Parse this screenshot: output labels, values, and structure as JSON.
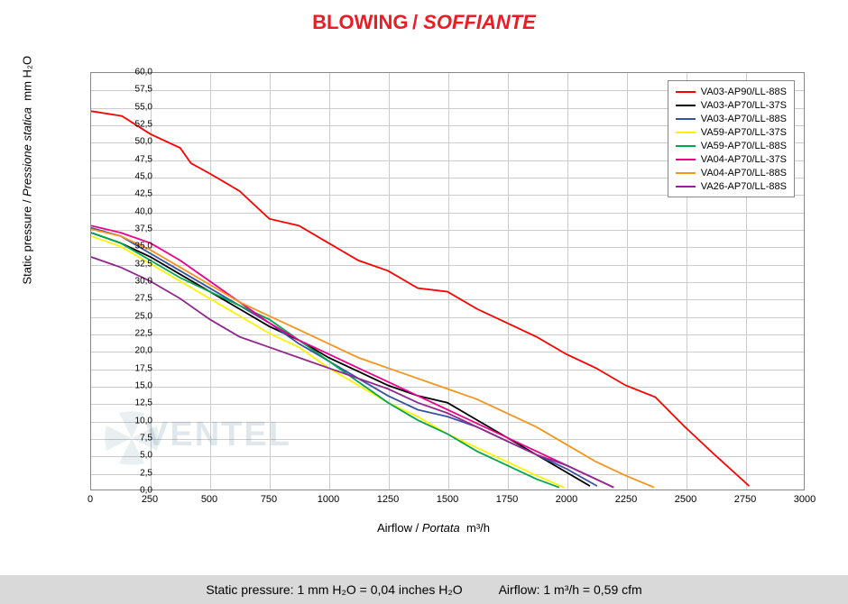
{
  "title_main": "BLOWING",
  "title_sub": "SOFFIANTE",
  "title_color": "#ed1c24",
  "ylabel_en": "Static pressure",
  "ylabel_it": "Pressione statica",
  "ylabel_unit": "mm  H₂O",
  "xlabel_en": "Airflow",
  "xlabel_it": "Portata",
  "xlabel_unit": "m³/h",
  "footer_left": "Static pressure: 1 mm H₂O = 0,04 inches H₂O",
  "footer_right": "Airflow: 1 m³/h = 0,59 cfm",
  "xlim": [
    0,
    3000
  ],
  "ylim": [
    0,
    60
  ],
  "xtick_step": 250,
  "ytick_step": 2.5,
  "xticks": [
    "0",
    "250",
    "500",
    "750",
    "1000",
    "1250",
    "1500",
    "1750",
    "2000",
    "2250",
    "2500",
    "2750",
    "3000"
  ],
  "yticks": [
    "0,0",
    "2,5",
    "5,0",
    "7,5",
    "10,0",
    "12,5",
    "15,0",
    "17,5",
    "20,0",
    "22,5",
    "25,0",
    "27,5",
    "30,0",
    "32,5",
    "35,0",
    "37,5",
    "40,0",
    "42,5",
    "45,0",
    "47,5",
    "50,0",
    "52,5",
    "55,0",
    "57,5",
    "60,0"
  ],
  "line_width": 1.8,
  "grid_color": "#cccccc",
  "border_color": "#888888",
  "background_color": "#ffffff",
  "footer_bg": "#d9d9d9",
  "tick_fontsize": 10,
  "label_fontsize": 13,
  "legend_fontsize": 11,
  "watermark_text": "VENTEL",
  "series": [
    {
      "label": "VA03-AP90/LL-88S",
      "color": "#ff0000",
      "data": [
        [
          0,
          54.5
        ],
        [
          130,
          53.8
        ],
        [
          250,
          51.2
        ],
        [
          375,
          49.2
        ],
        [
          420,
          47
        ],
        [
          500,
          45.5
        ],
        [
          625,
          43
        ],
        [
          750,
          39
        ],
        [
          875,
          38
        ],
        [
          1000,
          35.5
        ],
        [
          1125,
          33
        ],
        [
          1250,
          31.5
        ],
        [
          1375,
          29
        ],
        [
          1500,
          28.5
        ],
        [
          1625,
          26
        ],
        [
          1750,
          24
        ],
        [
          1875,
          22
        ],
        [
          2000,
          19.5
        ],
        [
          2125,
          17.5
        ],
        [
          2250,
          15
        ],
        [
          2375,
          13.3
        ],
        [
          2500,
          9
        ],
        [
          2625,
          5
        ],
        [
          2770,
          0.5
        ]
      ]
    },
    {
      "label": "VA03-AP70/LL-37S",
      "color": "#000000",
      "data": [
        [
          0,
          37
        ],
        [
          125,
          35.5
        ],
        [
          250,
          33.5
        ],
        [
          375,
          31
        ],
        [
          500,
          28.5
        ],
        [
          625,
          26
        ],
        [
          750,
          23.5
        ],
        [
          875,
          21.5
        ],
        [
          1000,
          19
        ],
        [
          1125,
          17
        ],
        [
          1250,
          15
        ],
        [
          1375,
          13.5
        ],
        [
          1500,
          12.5
        ],
        [
          1625,
          10
        ],
        [
          1750,
          7.5
        ],
        [
          1875,
          5
        ],
        [
          2000,
          2.5
        ],
        [
          2100,
          0.5
        ]
      ]
    },
    {
      "label": "VA03-AP70/LL-88S",
      "color": "#3953a4",
      "data": [
        [
          0,
          37.7
        ],
        [
          125,
          36.5
        ],
        [
          250,
          34
        ],
        [
          375,
          31.5
        ],
        [
          500,
          29
        ],
        [
          625,
          26.5
        ],
        [
          750,
          24
        ],
        [
          875,
          21
        ],
        [
          1000,
          18.5
        ],
        [
          1125,
          16
        ],
        [
          1250,
          13.5
        ],
        [
          1375,
          11.5
        ],
        [
          1500,
          10.5
        ],
        [
          1625,
          9
        ],
        [
          1750,
          7
        ],
        [
          1875,
          5
        ],
        [
          2000,
          3
        ],
        [
          2130,
          0.5
        ]
      ]
    },
    {
      "label": "VA59-AP70/LL-37S",
      "color": "#fff200",
      "data": [
        [
          0,
          36.5
        ],
        [
          125,
          35
        ],
        [
          250,
          32.5
        ],
        [
          375,
          30
        ],
        [
          500,
          27.5
        ],
        [
          625,
          25
        ],
        [
          750,
          22.5
        ],
        [
          875,
          20.5
        ],
        [
          1000,
          17.5
        ],
        [
          1125,
          15
        ],
        [
          1250,
          12.5
        ],
        [
          1375,
          10.5
        ],
        [
          1500,
          8
        ],
        [
          1625,
          6
        ],
        [
          1750,
          4
        ],
        [
          1875,
          2
        ],
        [
          1990,
          0.3
        ]
      ]
    },
    {
      "label": "VA59-AP70/LL-88S",
      "color": "#00a651",
      "data": [
        [
          0,
          37
        ],
        [
          125,
          35.5
        ],
        [
          250,
          33
        ],
        [
          375,
          30.5
        ],
        [
          500,
          28.5
        ],
        [
          625,
          26.5
        ],
        [
          750,
          24.5
        ],
        [
          875,
          21.5
        ],
        [
          1000,
          18.5
        ],
        [
          1125,
          15.5
        ],
        [
          1250,
          12.5
        ],
        [
          1375,
          10
        ],
        [
          1500,
          8
        ],
        [
          1625,
          5.5
        ],
        [
          1750,
          3.5
        ],
        [
          1875,
          1.5
        ],
        [
          1970,
          0.3
        ]
      ]
    },
    {
      "label": "VA04-AP70/LL-37S",
      "color": "#ec008c",
      "data": [
        [
          0,
          38
        ],
        [
          125,
          37
        ],
        [
          250,
          35.5
        ],
        [
          375,
          33
        ],
        [
          500,
          30
        ],
        [
          625,
          27
        ],
        [
          750,
          24
        ],
        [
          875,
          21.5
        ],
        [
          1000,
          19.5
        ],
        [
          1125,
          17.5
        ],
        [
          1250,
          15.5
        ],
        [
          1375,
          13.5
        ],
        [
          1500,
          11.5
        ],
        [
          1625,
          9.5
        ],
        [
          1750,
          7.5
        ],
        [
          1875,
          5.5
        ],
        [
          2000,
          3.5
        ],
        [
          2125,
          1.5
        ],
        [
          2200,
          0.3
        ]
      ]
    },
    {
      "label": "VA04-AP70/LL-88S",
      "color": "#f7941e",
      "data": [
        [
          0,
          37.5
        ],
        [
          125,
          36.5
        ],
        [
          250,
          34.5
        ],
        [
          375,
          32
        ],
        [
          500,
          29.5
        ],
        [
          625,
          27
        ],
        [
          750,
          25
        ],
        [
          875,
          23
        ],
        [
          1000,
          21
        ],
        [
          1125,
          19
        ],
        [
          1250,
          17.5
        ],
        [
          1375,
          16
        ],
        [
          1500,
          14.5
        ],
        [
          1625,
          13
        ],
        [
          1750,
          11
        ],
        [
          1875,
          9
        ],
        [
          2000,
          6.5
        ],
        [
          2125,
          4
        ],
        [
          2250,
          2
        ],
        [
          2370,
          0.3
        ]
      ]
    },
    {
      "label": "VA26-AP70/LL-88S",
      "color": "#92278f",
      "data": [
        [
          0,
          33.5
        ],
        [
          125,
          32
        ],
        [
          250,
          30
        ],
        [
          375,
          27.5
        ],
        [
          500,
          24.5
        ],
        [
          625,
          22
        ],
        [
          750,
          20.5
        ],
        [
          875,
          19
        ],
        [
          1000,
          17.5
        ],
        [
          1125,
          16
        ],
        [
          1250,
          14.5
        ],
        [
          1375,
          12.5
        ],
        [
          1500,
          11
        ],
        [
          1625,
          9
        ],
        [
          1750,
          7
        ],
        [
          1875,
          5
        ],
        [
          2000,
          3.5
        ],
        [
          2125,
          1.5
        ],
        [
          2200,
          0.3
        ]
      ]
    }
  ]
}
